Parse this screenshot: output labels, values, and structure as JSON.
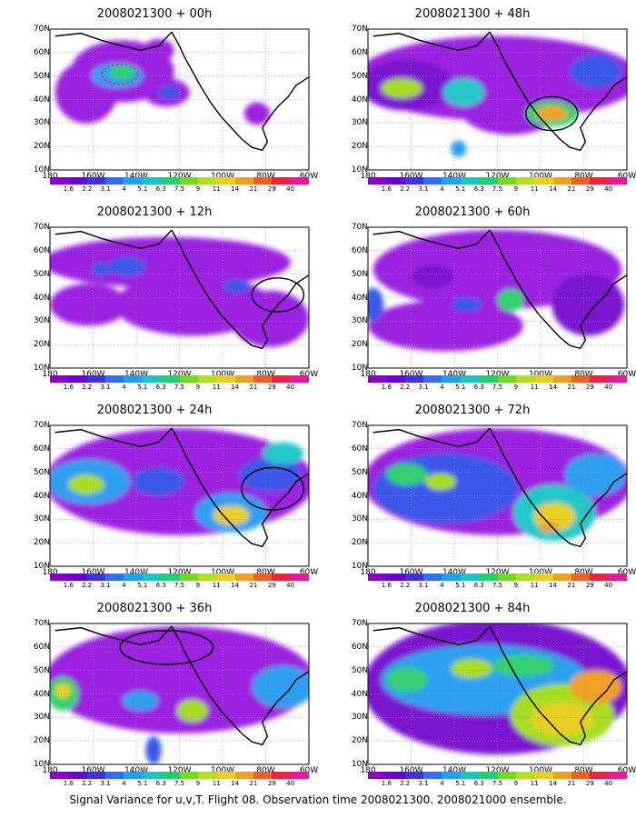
{
  "panels": [
    {
      "title": "2008021300 + 00h"
    },
    {
      "title": "2008021300 + 48h"
    },
    {
      "title": "2008021300 + 12h"
    },
    {
      "title": "2008021300 + 60h"
    },
    {
      "title": "2008021300 + 24h"
    },
    {
      "title": "2008021300 + 72h"
    },
    {
      "title": "2008021300 + 36h"
    },
    {
      "title": "2008021300 + 84h"
    }
  ],
  "lat_labels": [
    "70N",
    "60N",
    "50N",
    "40N",
    "30N",
    "20N",
    "10N"
  ],
  "lon_labels": [
    "180",
    "160W",
    "140W",
    "120W",
    "100W",
    "80W",
    "60W"
  ],
  "colorbar": {
    "labels": [
      "1.6",
      "2.2",
      "3.1",
      "4",
      "5.1",
      "6.3",
      "7.5",
      "9",
      "11",
      "14",
      "21",
      "29",
      "40"
    ],
    "colors": [
      "#8a00c8",
      "#6a00d8",
      "#4030e0",
      "#2f6ff0",
      "#1fa0f0",
      "#18c8c0",
      "#20d070",
      "#70dc20",
      "#b0e020",
      "#e8d020",
      "#f0a020",
      "#f06020",
      "#f02040",
      "#e8189a"
    ]
  },
  "caption": "Signal Variance for u,v,T. Flight 08. Observation time 2008021300. 2008021000 ensemble."
}
